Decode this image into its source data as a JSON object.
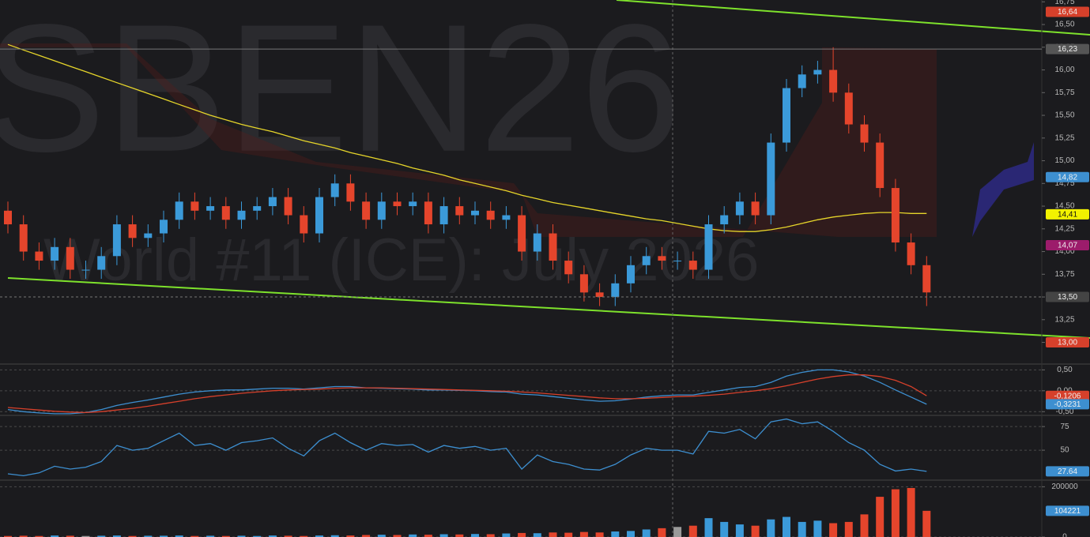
{
  "chart_data": [
    {
      "type": "candlestick",
      "title": "SBEN26",
      "subtitle": "World #11 (ICE): July 2026",
      "up_color": "#3b9ad9",
      "down_color": "#e5452c",
      "open": [
        14.45,
        14.3,
        14.0,
        13.9,
        14.05,
        13.8,
        13.8,
        13.95,
        14.3,
        14.15,
        14.2,
        14.35,
        14.55,
        14.45,
        14.5,
        14.35,
        14.45,
        14.5,
        14.6,
        14.4,
        14.2,
        14.6,
        14.75,
        14.55,
        14.35,
        14.55,
        14.5,
        14.55,
        14.3,
        14.5,
        14.4,
        14.45,
        14.35,
        14.4,
        14.0,
        14.2,
        13.9,
        13.75,
        13.55,
        13.5,
        13.65,
        13.85,
        13.95,
        13.9,
        13.9,
        13.8,
        14.3,
        14.4,
        14.55,
        14.4,
        15.2,
        15.8,
        15.95,
        16.0,
        15.75,
        15.4,
        15.2,
        14.7,
        14.1,
        13.85
      ],
      "high": [
        14.55,
        14.4,
        14.1,
        14.15,
        14.15,
        13.9,
        14.05,
        14.4,
        14.4,
        14.3,
        14.45,
        14.65,
        14.65,
        14.6,
        14.6,
        14.55,
        14.6,
        14.7,
        14.7,
        14.5,
        14.7,
        14.85,
        14.85,
        14.65,
        14.65,
        14.65,
        14.65,
        14.65,
        14.6,
        14.6,
        14.55,
        14.55,
        14.5,
        14.5,
        14.3,
        14.3,
        14.0,
        13.85,
        13.65,
        13.75,
        13.95,
        14.05,
        14.05,
        14.0,
        14.0,
        14.4,
        14.5,
        14.65,
        14.65,
        15.3,
        15.9,
        16.05,
        16.1,
        16.25,
        15.85,
        15.5,
        15.3,
        14.8,
        14.2,
        13.95
      ],
      "low": [
        14.2,
        13.9,
        13.8,
        13.8,
        13.7,
        13.7,
        13.7,
        13.85,
        14.05,
        14.05,
        14.1,
        14.25,
        14.35,
        14.35,
        14.25,
        14.25,
        14.35,
        14.4,
        14.3,
        14.1,
        14.1,
        14.5,
        14.45,
        14.25,
        14.25,
        14.4,
        14.4,
        14.2,
        14.2,
        14.3,
        14.3,
        14.25,
        14.25,
        13.9,
        13.9,
        13.8,
        13.65,
        13.45,
        13.4,
        13.4,
        13.55,
        13.75,
        13.8,
        13.8,
        13.7,
        13.7,
        14.2,
        14.3,
        14.3,
        14.3,
        15.1,
        15.7,
        15.85,
        15.65,
        15.3,
        15.1,
        14.6,
        14.0,
        13.75,
        13.4
      ],
      "close": [
        14.3,
        14.0,
        13.9,
        14.05,
        13.8,
        13.8,
        13.95,
        14.3,
        14.15,
        14.2,
        14.35,
        14.55,
        14.45,
        14.5,
        14.35,
        14.45,
        14.5,
        14.6,
        14.4,
        14.2,
        14.6,
        14.75,
        14.55,
        14.35,
        14.55,
        14.5,
        14.55,
        14.3,
        14.5,
        14.4,
        14.45,
        14.35,
        14.4,
        14.0,
        14.2,
        13.9,
        13.75,
        13.55,
        13.5,
        13.65,
        13.85,
        13.95,
        13.9,
        13.9,
        13.8,
        14.3,
        14.4,
        14.55,
        14.4,
        15.2,
        15.8,
        15.95,
        16.0,
        15.75,
        15.4,
        15.2,
        14.7,
        14.1,
        13.85,
        13.55
      ],
      "overlays": [
        {
          "color": "#e6d52a",
          "values": [
            16.28,
            16.22,
            16.16,
            16.1,
            16.04,
            15.98,
            15.92,
            15.86,
            15.8,
            15.74,
            15.68,
            15.62,
            15.56,
            15.5,
            15.45,
            15.4,
            15.36,
            15.32,
            15.27,
            15.22,
            15.18,
            15.14,
            15.09,
            15.05,
            15.01,
            14.97,
            14.92,
            14.88,
            14.84,
            14.79,
            14.75,
            14.71,
            14.67,
            14.62,
            14.58,
            14.54,
            14.51,
            14.48,
            14.45,
            14.42,
            14.39,
            14.36,
            14.34,
            14.31,
            14.28,
            14.25,
            14.23,
            14.22,
            14.22,
            14.24,
            14.27,
            14.31,
            14.35,
            14.38,
            14.4,
            14.42,
            14.43,
            14.43,
            14.42,
            14.42
          ]
        }
      ],
      "ylim": [
        12.77,
        16.77
      ],
      "yticks": [
        {
          "value": 13,
          "label": "13,00"
        },
        {
          "value": 13.25,
          "label": "13,25"
        },
        {
          "value": 13.5,
          "label": "13,50"
        },
        {
          "value": 13.75,
          "label": "13,75"
        },
        {
          "value": 14,
          "label": "14,00"
        },
        {
          "value": 14.25,
          "label": "14,25"
        },
        {
          "value": 14.5,
          "label": "14,50"
        },
        {
          "value": 14.75,
          "label": "14,75"
        },
        {
          "value": 15,
          "label": "15,00"
        },
        {
          "value": 15.25,
          "label": "15,25"
        },
        {
          "value": 15.5,
          "label": "15,50"
        },
        {
          "value": 15.75,
          "label": "15,75"
        },
        {
          "value": 16,
          "label": "16,00"
        },
        {
          "value": 16.25,
          "label": "16,25"
        },
        {
          "value": 16.5,
          "label": "16,50"
        },
        {
          "value": 16.75,
          "label": "16,75"
        }
      ],
      "price_labels": [
        {
          "value": 16.64,
          "label": "16,64",
          "color": "#d6402b"
        },
        {
          "value": 16.23,
          "label": "16,23",
          "color": "#555555",
          "line": "solid"
        },
        {
          "value": 14.82,
          "label": "14,82",
          "color": "#3d8fd0"
        },
        {
          "value": 14.41,
          "label": "14,41",
          "color": "#f2f200"
        },
        {
          "value": 14.07,
          "label": "14,07",
          "color": "#9c1c6b"
        },
        {
          "value": 13.5,
          "label": "13,50",
          "color": "#444444",
          "line": "dashed"
        },
        {
          "value": 13,
          "label": "13,00",
          "color": "#d6402b"
        }
      ]
    },
    {
      "type": "line",
      "series": [
        {
          "color": "#3d8fd0",
          "values": [
            -0.45,
            -0.5,
            -0.53,
            -0.55,
            -0.55,
            -0.52,
            -0.45,
            -0.35,
            -0.28,
            -0.22,
            -0.15,
            -0.08,
            -0.03,
            0,
            0.02,
            0.02,
            0.04,
            0.06,
            0.06,
            0.04,
            0.07,
            0.1,
            0.1,
            0.07,
            0.06,
            0.05,
            0.04,
            0.02,
            0.02,
            0.01,
            0,
            -0.02,
            -0.03,
            -0.08,
            -0.1,
            -0.14,
            -0.18,
            -0.22,
            -0.25,
            -0.24,
            -0.2,
            -0.15,
            -0.12,
            -0.1,
            -0.1,
            -0.04,
            0.02,
            0.08,
            0.1,
            0.2,
            0.35,
            0.44,
            0.5,
            0.5,
            0.45,
            0.35,
            0.2,
            0.02,
            -0.15,
            -0.3231
          ]
        },
        {
          "color": "#d6402b",
          "values": [
            -0.4,
            -0.43,
            -0.46,
            -0.49,
            -0.51,
            -0.52,
            -0.5,
            -0.46,
            -0.42,
            -0.37,
            -0.31,
            -0.25,
            -0.19,
            -0.14,
            -0.1,
            -0.06,
            -0.03,
            0,
            0.02,
            0.03,
            0.04,
            0.06,
            0.07,
            0.07,
            0.07,
            0.06,
            0.05,
            0.04,
            0.03,
            0.02,
            0.01,
            0,
            -0.01,
            -0.03,
            -0.05,
            -0.08,
            -0.11,
            -0.14,
            -0.17,
            -0.19,
            -0.19,
            -0.18,
            -0.16,
            -0.14,
            -0.13,
            -0.11,
            -0.08,
            -0.04,
            0,
            0.05,
            0.12,
            0.2,
            0.28,
            0.34,
            0.38,
            0.38,
            0.34,
            0.25,
            0.1,
            -0.1206
          ]
        }
      ],
      "ylim": [
        -0.57,
        0.62
      ],
      "yticks": [
        {
          "value": -0.5,
          "label": "-0,50"
        },
        {
          "value": 0,
          "label": "0,00"
        },
        {
          "value": 0.5,
          "label": "0,50"
        }
      ],
      "price_labels": [
        {
          "value": -0.1206,
          "label": "-0,1206",
          "color": "#d6402b"
        },
        {
          "value": -0.3231,
          "label": "-0,3231",
          "color": "#3d8fd0"
        }
      ]
    },
    {
      "type": "line",
      "series": [
        {
          "color": "#3d8fd0",
          "values": [
            25,
            23,
            26,
            33,
            30,
            32,
            38,
            55,
            50,
            52,
            60,
            68,
            55,
            57,
            50,
            58,
            60,
            63,
            52,
            44,
            60,
            68,
            58,
            50,
            57,
            55,
            56,
            48,
            55,
            52,
            54,
            50,
            52,
            30,
            45,
            38,
            35,
            30,
            29,
            35,
            45,
            52,
            50,
            50,
            46,
            70,
            68,
            72,
            62,
            80,
            83,
            78,
            80,
            70,
            58,
            50,
            35,
            28,
            30,
            27.64
          ]
        }
      ],
      "ylim": [
        20,
        86
      ],
      "yticks": [
        50,
        75
      ],
      "price_labels": [
        {
          "value": 27.64,
          "label": "27.64",
          "color": "#3d8fd0"
        }
      ]
    },
    {
      "type": "bar",
      "flat_color": "#9a9a9a",
      "values": [
        4000,
        5000,
        4000,
        6000,
        5000,
        4000,
        5000,
        6000,
        4000,
        5000,
        5000,
        6000,
        4000,
        5000,
        4000,
        5000,
        4000,
        6000,
        5000,
        4000,
        6000,
        7000,
        6000,
        8000,
        9000,
        8000,
        10000,
        9000,
        11000,
        10000,
        12000,
        11000,
        14000,
        16000,
        15000,
        18000,
        17000,
        20000,
        18000,
        22000,
        24000,
        30000,
        35000,
        40000,
        45000,
        75000,
        60000,
        50000,
        45000,
        70000,
        80000,
        60000,
        65000,
        55000,
        60000,
        90000,
        160000,
        190000,
        195000,
        104221
      ],
      "ylim": [
        0,
        220000
      ],
      "yticks": [
        0,
        200000
      ],
      "price_labels": [
        {
          "value": 104221,
          "label": "104221",
          "color": "#3d8fd0"
        }
      ]
    }
  ]
}
